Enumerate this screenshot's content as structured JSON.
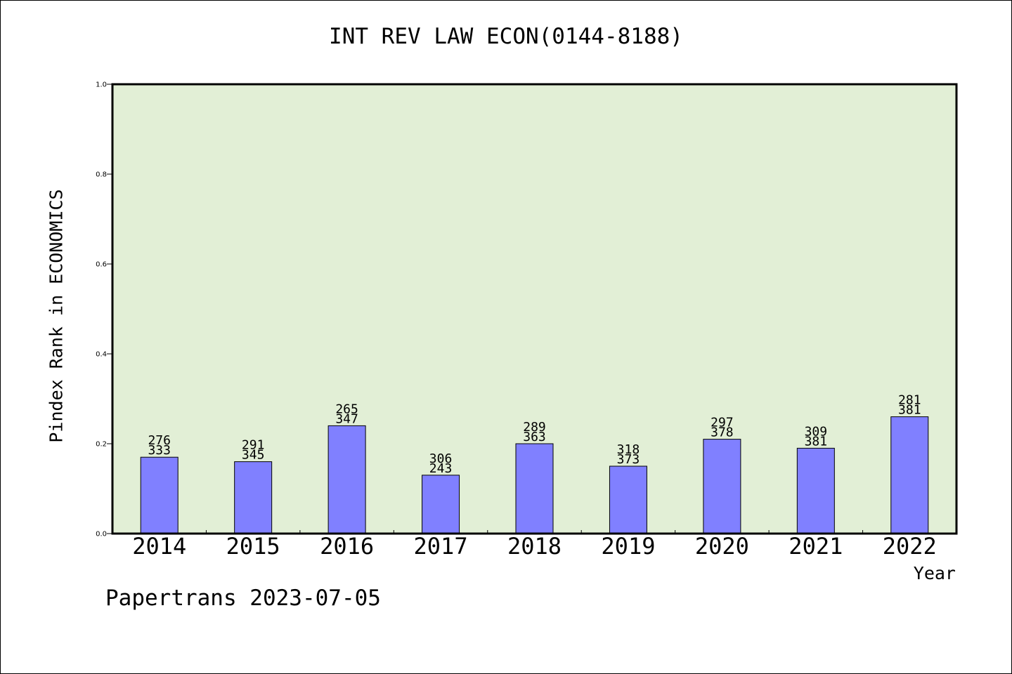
{
  "footer": "Papertrans 2023-07-05",
  "colors": {
    "plot_background": "#e2efd6",
    "bar_fill": "#8080ff",
    "bar_stroke": "#000000",
    "axis": "#000000"
  },
  "chart_data": {
    "type": "bar",
    "title": "INT REV LAW ECON(0144-8188)",
    "xlabel": "Year",
    "ylabel": "Pindex Rank in ECONOMICS",
    "ylim": [
      0,
      1.0
    ],
    "yticks": [
      "0.0",
      "0.2",
      "0.4",
      "0.6",
      "0.8",
      "1.0"
    ],
    "grid": false,
    "categories": [
      "2014",
      "2015",
      "2016",
      "2017",
      "2018",
      "2019",
      "2020",
      "2021",
      "2022"
    ],
    "values": [
      0.17,
      0.16,
      0.24,
      0.13,
      0.2,
      0.15,
      0.21,
      0.19,
      0.26
    ],
    "annotations_top": [
      "276",
      "291",
      "265",
      "306",
      "289",
      "318",
      "297",
      "309",
      "281"
    ],
    "annotations_bottom": [
      "333",
      "345",
      "347",
      "243",
      "363",
      "373",
      "378",
      "381",
      "381"
    ]
  }
}
